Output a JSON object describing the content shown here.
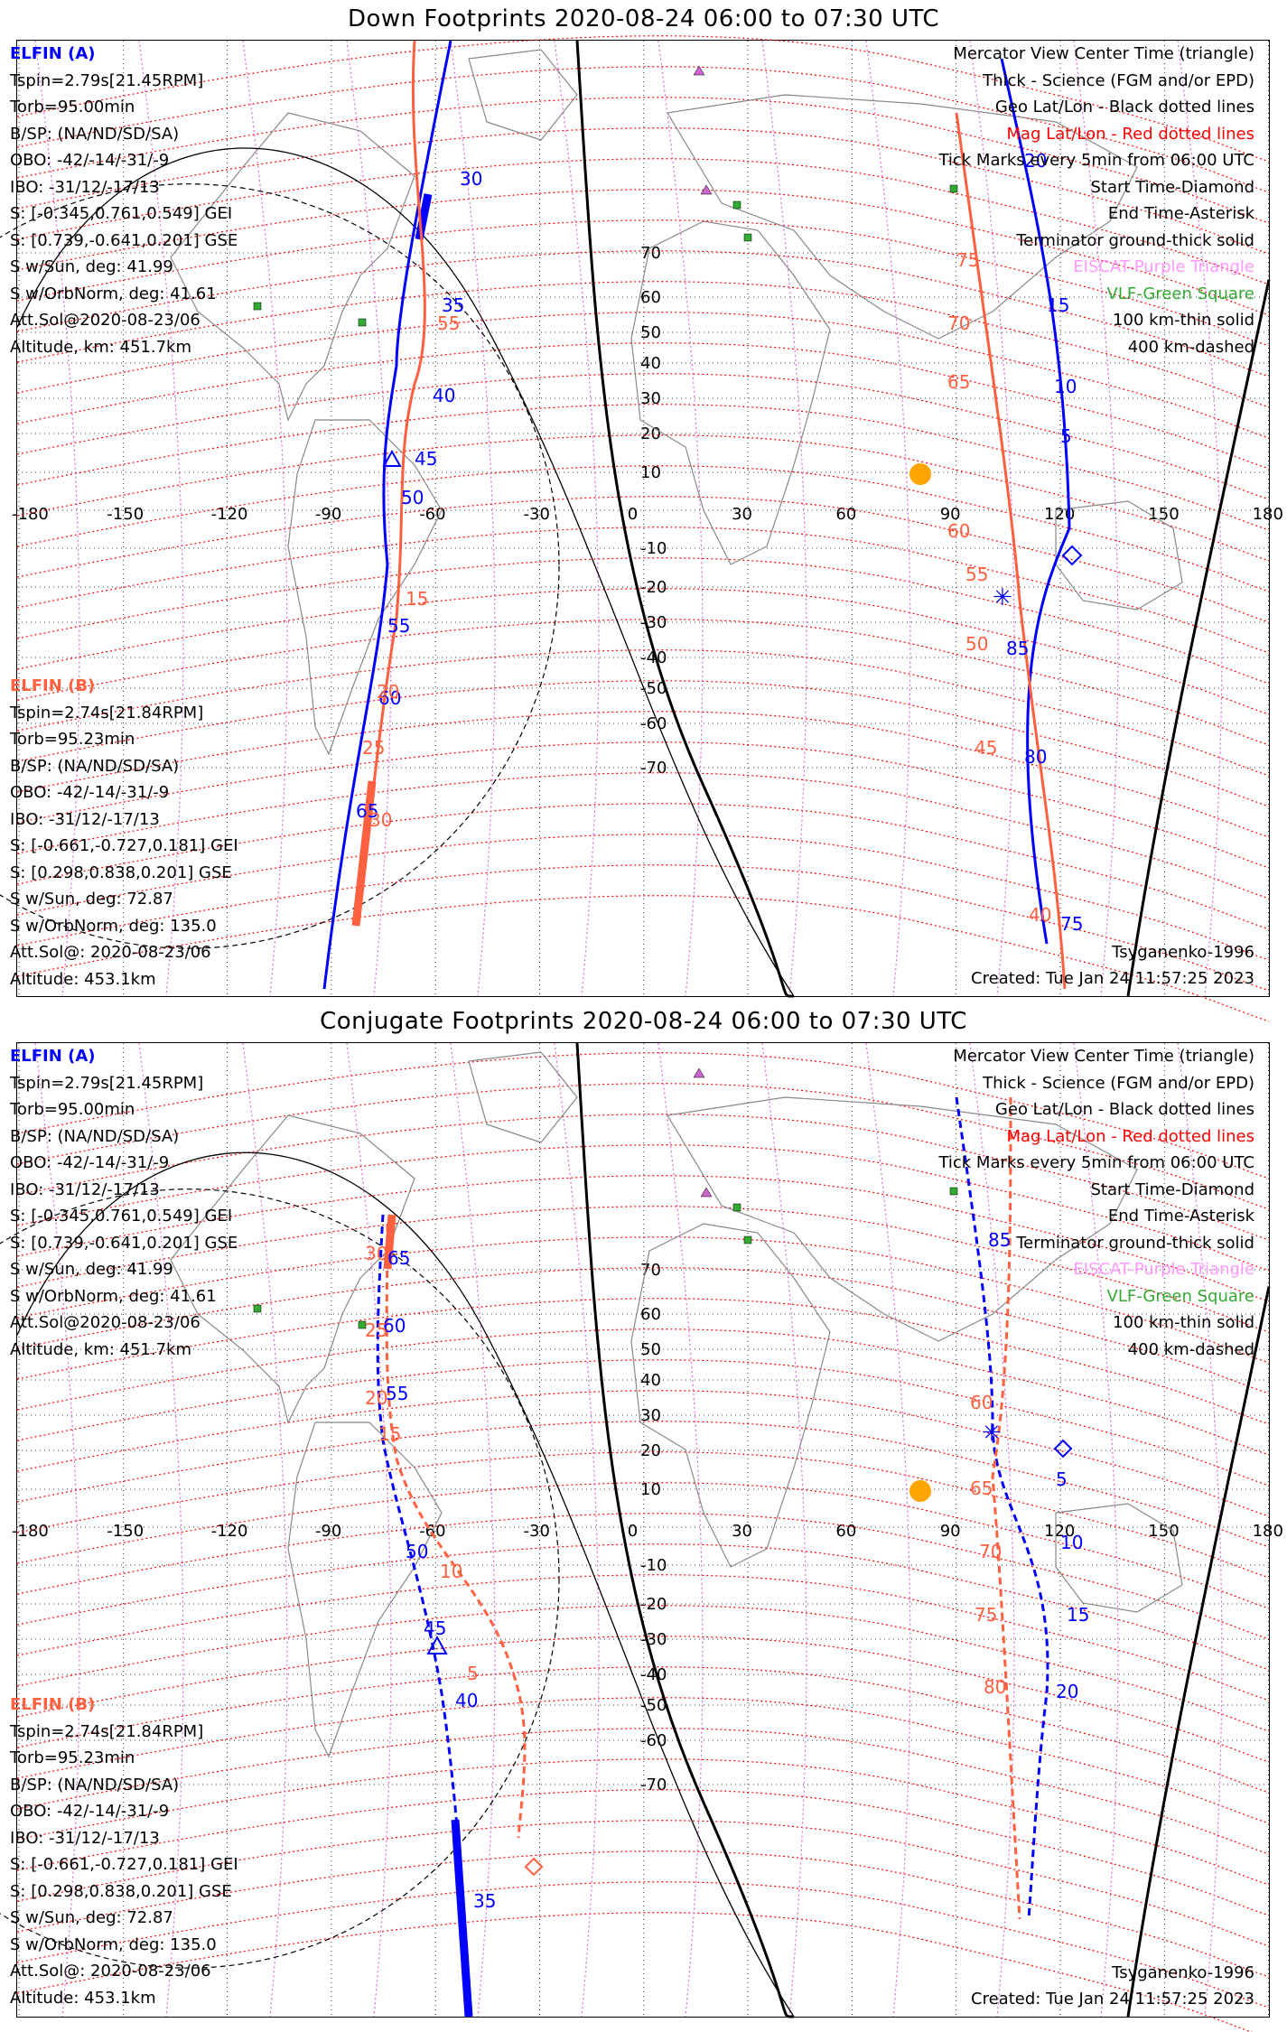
{
  "panels": [
    {
      "title": "Down Footprints 2020-08-24 06:00 to 07:30 UTC",
      "elfin_a": {
        "name": "ELFIN (A)",
        "lines": [
          "Tspin=2.79s[21.45RPM]",
          "Torb=95.00min",
          "B/SP: (NA/ND/SD/SA)",
          "OBO: -42/-14/-31/-9",
          "IBO: -31/12/-17/13",
          "S: [-0.345,0.761,0.549] GEI",
          "S: [0.739,-0.641,0.201] GSE",
          "S w/Sun, deg: 41.99",
          "S w/OrbNorm, deg: 41.61",
          "Att.Sol@2020-08-23/06",
          "Altitude, km: 451.7km"
        ]
      },
      "elfin_b": {
        "name": "ELFIN (B)",
        "lines": [
          "Tspin=2.74s[21.84RPM]",
          "Torb=95.23min",
          "B/SP: (NA/ND/SD/SA)",
          "OBO: -42/-14/-31/-9",
          "IBO: -31/12/-17/13",
          "S: [-0.661,-0.727,0.181] GEI",
          "S: [0.298,0.838,0.201] GSE",
          "S w/Sun, deg: 72.87",
          "S w/OrbNorm, deg: 135.0",
          "Att.Sol@: 2020-08-23/06",
          "Altitude: 453.1km"
        ]
      },
      "legend": [
        "Mercator View Center Time (triangle)",
        "Thick - Science (FGM and/or EPD)",
        "Geo Lat/Lon - Black dotted lines",
        "Mag Lat/Lon - Red dotted lines",
        "Tick Marks every 5min from 06:00 UTC",
        "Start Time-Diamond",
        "End Time-Asterisk",
        "Terminator ground-thick solid",
        "EISCAT-Purple Triangle",
        "VLF-Green Square",
        "100 km-thin solid",
        "400 km-dashed"
      ],
      "model": "Tsyganenko-1996",
      "created": "Created: Tue Jan 24 11:57:25 2023",
      "track_a_labels": [
        "30",
        "35",
        "40",
        "45",
        "50",
        "55",
        "60",
        "65",
        "20",
        "15",
        "10",
        "5",
        "85",
        "80",
        "75"
      ],
      "track_b_labels": [
        "55",
        "15",
        "20",
        "25",
        "30",
        "75",
        "70",
        "65",
        "60",
        "55",
        "50",
        "45",
        "40"
      ]
    },
    {
      "title": "Conjugate Footprints 2020-08-24 06:00 to 07:30 UTC",
      "elfin_a": {
        "name": "ELFIN (A)",
        "lines": [
          "Tspin=2.79s[21.45RPM]",
          "Torb=95.00min",
          "B/SP: (NA/ND/SD/SA)",
          "OBO: -42/-14/-31/-9",
          "IBO: -31/12/-17/13",
          "S: [-0.345,0.761,0.549] GEI",
          "S: [0.739,-0.641,0.201] GSE",
          "S w/Sun, deg: 41.99",
          "S w/OrbNorm, deg: 41.61",
          "Att.Sol@2020-08-23/06",
          "Altitude, km: 451.7km"
        ]
      },
      "elfin_b": {
        "name": "ELFIN (B)",
        "lines": [
          "Tspin=2.74s[21.84RPM]",
          "Torb=95.23min",
          "B/SP: (NA/ND/SD/SA)",
          "OBO: -42/-14/-31/-9",
          "IBO: -31/12/-17/13",
          "S: [-0.661,-0.727,0.181] GEI",
          "S: [0.298,0.838,0.201] GSE",
          "S w/Sun, deg: 72.87",
          "S w/OrbNorm, deg: 135.0",
          "Att.Sol@: 2020-08-23/06",
          "Altitude: 453.1km"
        ]
      },
      "legend": [
        "Mercator View Center Time (triangle)",
        "Thick - Science (FGM and/or EPD)",
        "Geo Lat/Lon - Black dotted lines",
        "Mag Lat/Lon - Red dotted lines",
        "Tick Marks every 5min from 06:00 UTC",
        "Start Time-Diamond",
        "End Time-Asterisk",
        "Terminator ground-thick solid",
        "EISCAT-Purple Triangle",
        "VLF-Green Square",
        "100 km-thin solid",
        "400 km-dashed"
      ],
      "model": "Tsyganenko-1996",
      "created": "Created: Tue Jan 24 11:57:25 2023",
      "track_a_labels": [
        "65",
        "60",
        "55",
        "50",
        "45",
        "40",
        "35",
        "85",
        "5",
        "10",
        "15",
        "20"
      ],
      "track_b_labels": [
        "30",
        "25",
        "20",
        "15",
        "10",
        "5",
        "60",
        "65",
        "70",
        "75",
        "80"
      ]
    }
  ],
  "lon_labels": [
    "-180",
    "-150",
    "-120",
    "-90",
    "-60",
    "-30",
    "0",
    "30",
    "60",
    "90",
    "120",
    "150",
    "180"
  ],
  "lat_labels": [
    "70",
    "60",
    "50",
    "40",
    "30",
    "20",
    "10",
    "-10",
    "-20",
    "-30",
    "-40",
    "-50",
    "-60",
    "-70"
  ],
  "colors": {
    "elfin_a": "#0000ff",
    "elfin_b": "#ff6040",
    "geo_grid": "#000000",
    "mag_grid": "#ff0000",
    "mag_meridian": "#dd66dd",
    "sun": "#ffa500",
    "vlf": "#33aa33",
    "eiscat": "#cc66cc",
    "legend_mag": "#ff0000",
    "legend_eiscat": "#ff99ff",
    "legend_vlf": "#33aa33"
  },
  "icons": [
    "sun-icon",
    "eiscat-triangle-icon",
    "vlf-square-icon",
    "start-diamond-icon",
    "end-asterisk-icon",
    "center-triangle-icon"
  ]
}
